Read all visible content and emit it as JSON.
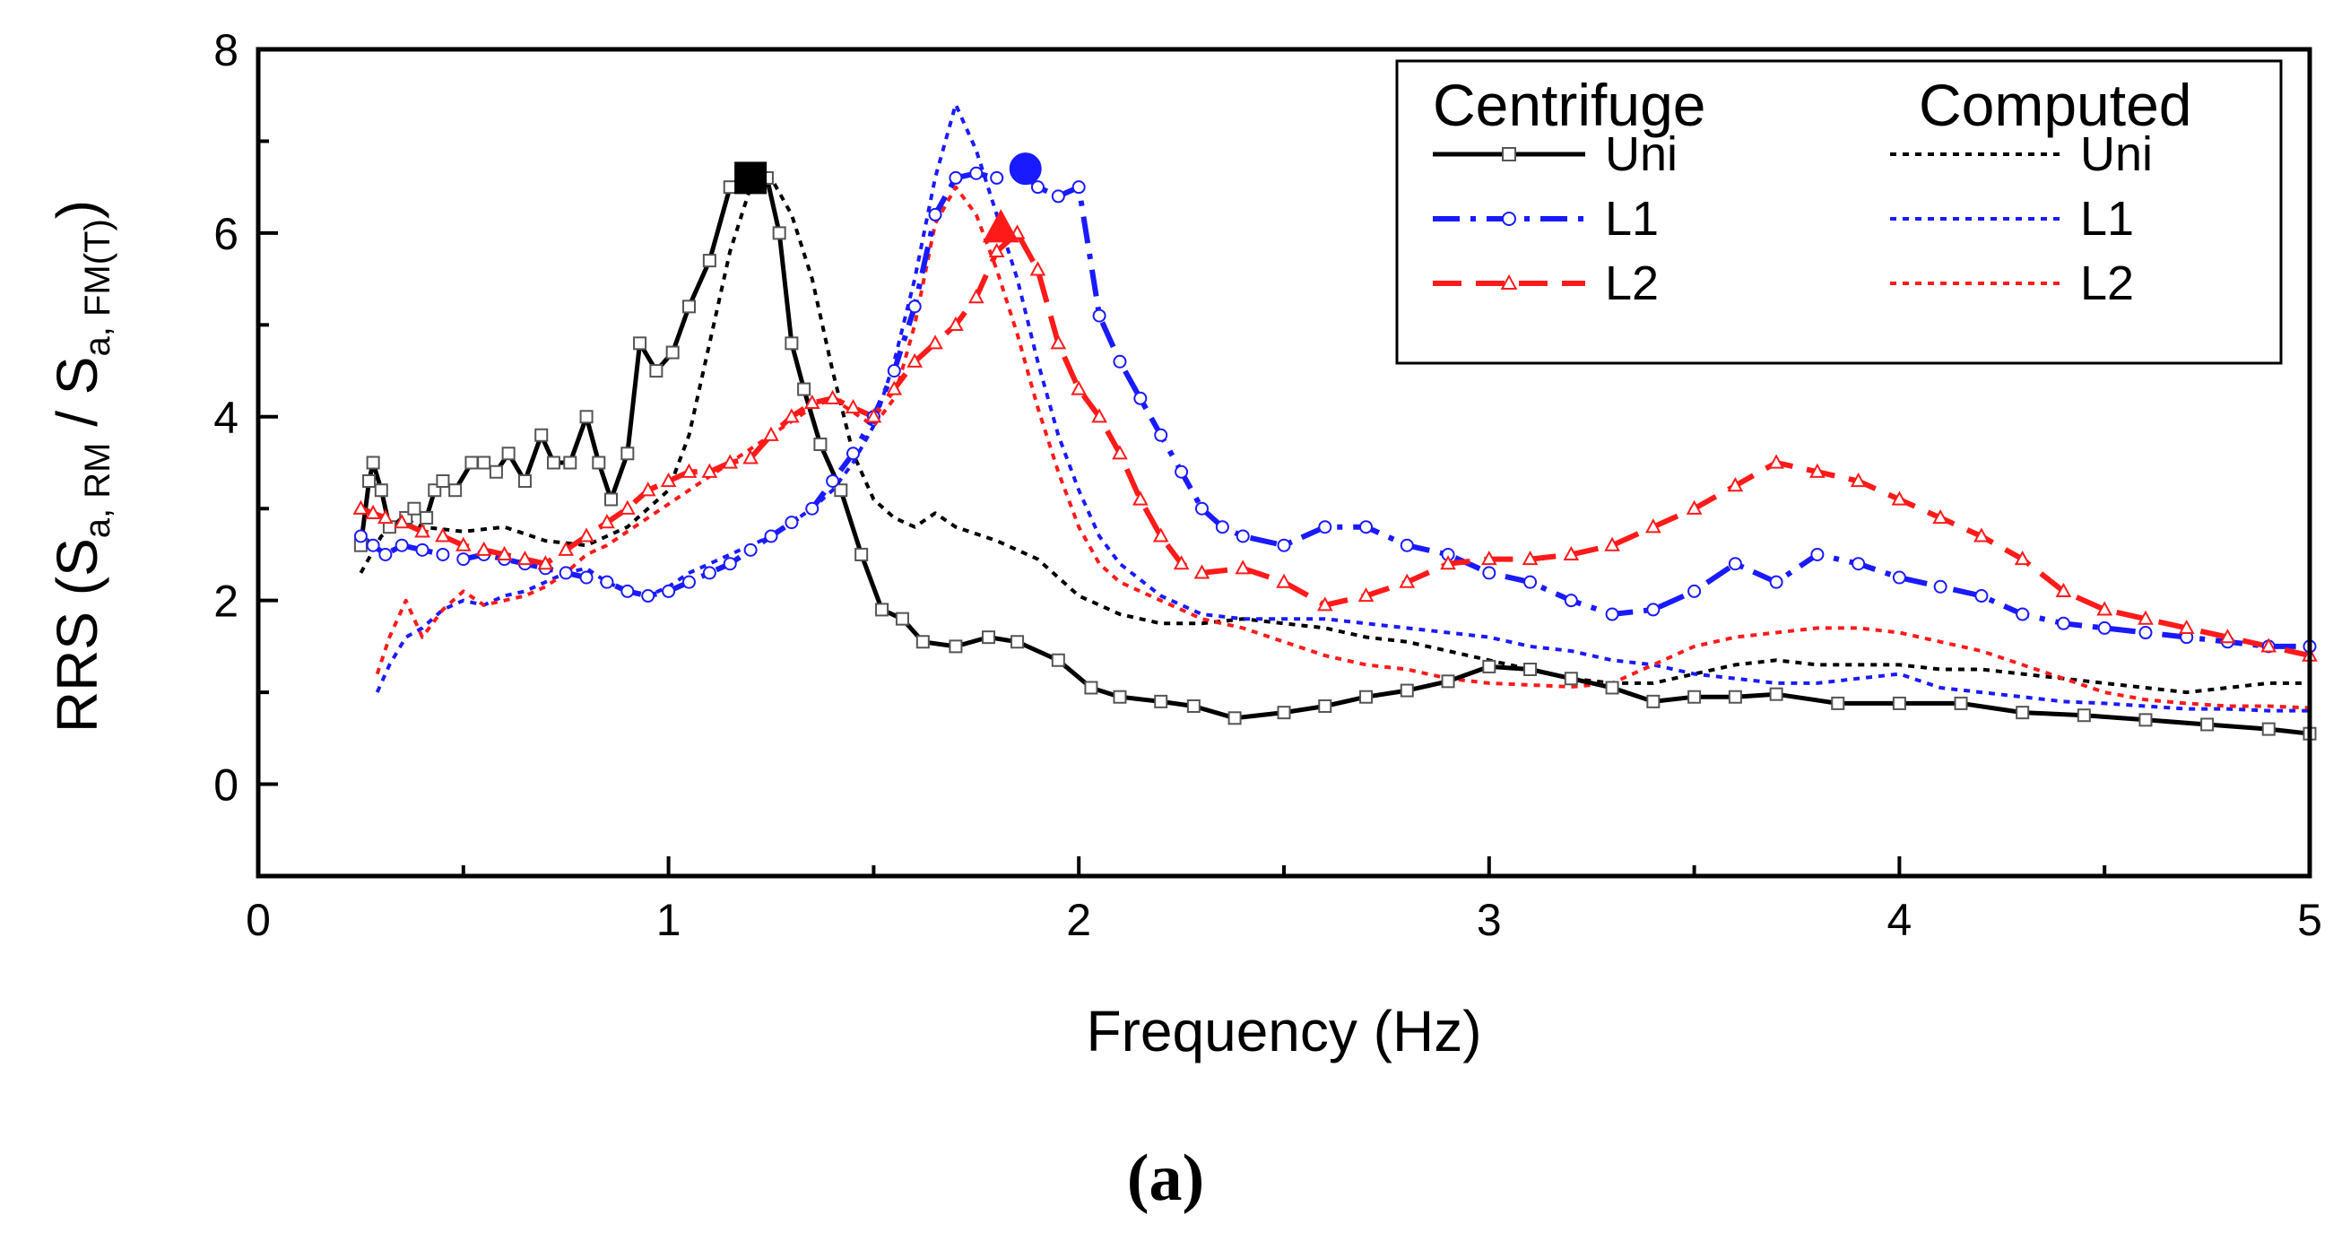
{
  "chart_data": {
    "type": "line",
    "xlabel": "Frequency (Hz)",
    "ylabel": {
      "main": "RRS (S",
      "sub1": "a, RM",
      "mid": " / S",
      "sub2": "a, FM(T)",
      "end": ")"
    },
    "xlim": [
      0,
      5
    ],
    "ylim": [
      -1,
      8
    ],
    "x_ticks": [
      0,
      1,
      2,
      3,
      4,
      5
    ],
    "y_ticks": [
      0,
      2,
      4,
      6,
      8
    ],
    "caption": "(a)",
    "legend": {
      "position": "top-right",
      "heading_left": "Centrifuge",
      "heading_right": "Computed"
    },
    "colors": {
      "uni": "#000000",
      "l1": "#1a1aff",
      "l2": "#ff1a1a"
    },
    "series": [
      {
        "name": "Uni",
        "group": "Centrifuge",
        "color": "#000000",
        "style": "solid",
        "marker": "square",
        "x": [
          0.25,
          0.27,
          0.28,
          0.3,
          0.32,
          0.36,
          0.38,
          0.41,
          0.43,
          0.45,
          0.48,
          0.52,
          0.55,
          0.58,
          0.61,
          0.65,
          0.69,
          0.72,
          0.76,
          0.8,
          0.83,
          0.86,
          0.9,
          0.93,
          0.97,
          1.01,
          1.05,
          1.1,
          1.15,
          1.2,
          1.24,
          1.27,
          1.3,
          1.33,
          1.37,
          1.42,
          1.47,
          1.52,
          1.57,
          1.62,
          1.7,
          1.78,
          1.85,
          1.95,
          2.03,
          2.1,
          2.2,
          2.28,
          2.38,
          2.5,
          2.6,
          2.7,
          2.8,
          2.9,
          3.0,
          3.1,
          3.2,
          3.3,
          3.4,
          3.5,
          3.6,
          3.7,
          3.85,
          4.0,
          4.15,
          4.3,
          4.45,
          4.6,
          4.75,
          4.9,
          5.0
        ],
        "y": [
          2.6,
          3.3,
          3.5,
          3.2,
          2.8,
          2.9,
          3.0,
          2.9,
          3.2,
          3.3,
          3.2,
          3.5,
          3.5,
          3.4,
          3.6,
          3.3,
          3.8,
          3.5,
          3.5,
          4.0,
          3.5,
          3.1,
          3.6,
          4.8,
          4.5,
          4.7,
          5.2,
          5.7,
          6.5,
          6.6,
          6.6,
          6.0,
          4.8,
          4.3,
          3.7,
          3.2,
          2.5,
          1.9,
          1.8,
          1.55,
          1.5,
          1.6,
          1.55,
          1.35,
          1.05,
          0.95,
          0.9,
          0.85,
          0.72,
          0.78,
          0.85,
          0.95,
          1.02,
          1.12,
          1.28,
          1.25,
          1.15,
          1.05,
          0.9,
          0.95,
          0.95,
          0.98,
          0.88,
          0.88,
          0.88,
          0.78,
          0.75,
          0.7,
          0.65,
          0.6,
          0.55
        ]
      },
      {
        "name": "L1",
        "group": "Centrifuge",
        "color": "#1a1aff",
        "style": "dashdot",
        "marker": "circle",
        "x": [
          0.25,
          0.28,
          0.31,
          0.35,
          0.4,
          0.45,
          0.5,
          0.55,
          0.6,
          0.65,
          0.7,
          0.75,
          0.8,
          0.85,
          0.9,
          0.95,
          1.0,
          1.05,
          1.1,
          1.15,
          1.2,
          1.25,
          1.3,
          1.35,
          1.4,
          1.45,
          1.5,
          1.55,
          1.6,
          1.65,
          1.7,
          1.75,
          1.8,
          1.85,
          1.9,
          1.95,
          2.0,
          2.05,
          2.1,
          2.15,
          2.2,
          2.25,
          2.3,
          2.35,
          2.4,
          2.5,
          2.6,
          2.7,
          2.8,
          2.9,
          3.0,
          3.1,
          3.2,
          3.3,
          3.4,
          3.5,
          3.6,
          3.7,
          3.8,
          3.9,
          4.0,
          4.1,
          4.2,
          4.3,
          4.4,
          4.5,
          4.6,
          4.7,
          4.8,
          4.9,
          5.0
        ],
        "y": [
          2.7,
          2.6,
          2.5,
          2.6,
          2.55,
          2.5,
          2.45,
          2.5,
          2.45,
          2.4,
          2.35,
          2.3,
          2.25,
          2.2,
          2.1,
          2.05,
          2.1,
          2.2,
          2.3,
          2.4,
          2.55,
          2.7,
          2.85,
          3.0,
          3.3,
          3.6,
          4.0,
          4.5,
          5.2,
          6.2,
          6.6,
          6.65,
          6.6,
          6.7,
          6.5,
          6.4,
          6.5,
          5.1,
          4.6,
          4.2,
          3.8,
          3.4,
          3.0,
          2.8,
          2.7,
          2.6,
          2.8,
          2.8,
          2.6,
          2.5,
          2.3,
          2.2,
          2.0,
          1.85,
          1.9,
          2.1,
          2.4,
          2.2,
          2.5,
          2.4,
          2.25,
          2.15,
          2.05,
          1.85,
          1.75,
          1.7,
          1.65,
          1.6,
          1.55,
          1.5,
          1.5
        ]
      },
      {
        "name": "L2",
        "group": "Centrifuge",
        "color": "#ff1a1a",
        "style": "dashed",
        "marker": "triangle",
        "x": [
          0.25,
          0.28,
          0.31,
          0.35,
          0.4,
          0.45,
          0.5,
          0.55,
          0.6,
          0.65,
          0.7,
          0.75,
          0.8,
          0.85,
          0.9,
          0.95,
          1.0,
          1.05,
          1.1,
          1.15,
          1.2,
          1.25,
          1.3,
          1.35,
          1.4,
          1.45,
          1.5,
          1.55,
          1.6,
          1.65,
          1.7,
          1.75,
          1.8,
          1.85,
          1.9,
          1.95,
          2.0,
          2.05,
          2.1,
          2.15,
          2.2,
          2.25,
          2.3,
          2.4,
          2.5,
          2.6,
          2.7,
          2.8,
          2.9,
          3.0,
          3.1,
          3.2,
          3.3,
          3.4,
          3.5,
          3.6,
          3.7,
          3.8,
          3.9,
          4.0,
          4.1,
          4.2,
          4.3,
          4.4,
          4.5,
          4.6,
          4.7,
          4.8,
          4.9,
          5.0
        ],
        "y": [
          3.0,
          2.95,
          2.9,
          2.85,
          2.75,
          2.7,
          2.6,
          2.55,
          2.5,
          2.45,
          2.4,
          2.55,
          2.7,
          2.85,
          3.0,
          3.2,
          3.3,
          3.4,
          3.4,
          3.5,
          3.55,
          3.8,
          4.0,
          4.15,
          4.2,
          4.1,
          4.0,
          4.3,
          4.6,
          4.8,
          5.0,
          5.3,
          5.8,
          6.0,
          5.6,
          4.8,
          4.3,
          4.0,
          3.6,
          3.1,
          2.7,
          2.4,
          2.3,
          2.35,
          2.2,
          1.95,
          2.05,
          2.2,
          2.4,
          2.45,
          2.45,
          2.5,
          2.6,
          2.8,
          3.0,
          3.25,
          3.5,
          3.4,
          3.3,
          3.1,
          2.9,
          2.7,
          2.45,
          2.1,
          1.9,
          1.8,
          1.7,
          1.6,
          1.5,
          1.4
        ]
      },
      {
        "name": "Uni",
        "group": "Computed",
        "color": "#000000",
        "style": "dotted",
        "marker": "none",
        "x": [
          0.25,
          0.3,
          0.35,
          0.4,
          0.5,
          0.6,
          0.7,
          0.8,
          0.9,
          1.0,
          1.05,
          1.1,
          1.15,
          1.2,
          1.25,
          1.3,
          1.35,
          1.4,
          1.45,
          1.5,
          1.55,
          1.6,
          1.65,
          1.7,
          1.8,
          1.9,
          2.0,
          2.1,
          2.2,
          2.3,
          2.4,
          2.5,
          2.6,
          2.7,
          2.8,
          2.9,
          3.0,
          3.1,
          3.2,
          3.3,
          3.4,
          3.5,
          3.6,
          3.7,
          3.8,
          3.9,
          4.0,
          4.1,
          4.2,
          4.3,
          4.4,
          4.5,
          4.6,
          4.7,
          4.8,
          4.9,
          5.0
        ],
        "y": [
          2.3,
          2.7,
          2.9,
          2.8,
          2.75,
          2.8,
          2.65,
          2.6,
          2.8,
          3.2,
          3.8,
          4.8,
          5.8,
          6.5,
          6.6,
          6.2,
          5.5,
          4.5,
          3.6,
          3.1,
          2.9,
          2.8,
          2.95,
          2.8,
          2.65,
          2.45,
          2.05,
          1.85,
          1.75,
          1.75,
          1.8,
          1.75,
          1.7,
          1.6,
          1.55,
          1.45,
          1.35,
          1.25,
          1.15,
          1.1,
          1.1,
          1.2,
          1.3,
          1.35,
          1.3,
          1.3,
          1.3,
          1.25,
          1.25,
          1.2,
          1.15,
          1.1,
          1.05,
          1.0,
          1.05,
          1.1,
          1.1
        ]
      },
      {
        "name": "L1",
        "group": "Computed",
        "color": "#1a1aff",
        "style": "dotted",
        "marker": "none",
        "x": [
          0.29,
          0.32,
          0.36,
          0.4,
          0.45,
          0.5,
          0.55,
          0.6,
          0.65,
          0.7,
          0.75,
          0.8,
          0.85,
          0.9,
          0.95,
          1.0,
          1.05,
          1.1,
          1.15,
          1.2,
          1.25,
          1.3,
          1.35,
          1.4,
          1.45,
          1.5,
          1.55,
          1.6,
          1.65,
          1.7,
          1.75,
          1.8,
          1.85,
          1.9,
          1.95,
          2.0,
          2.05,
          2.1,
          2.2,
          2.3,
          2.4,
          2.5,
          2.6,
          2.7,
          2.8,
          2.9,
          3.0,
          3.1,
          3.2,
          3.3,
          3.4,
          3.5,
          3.6,
          3.7,
          3.8,
          3.9,
          4.0,
          4.1,
          4.2,
          4.3,
          4.4,
          4.5,
          4.6,
          4.7,
          4.8,
          4.9,
          5.0
        ],
        "y": [
          1.0,
          1.3,
          1.6,
          1.7,
          1.9,
          2.0,
          1.95,
          2.05,
          2.1,
          2.2,
          2.3,
          2.35,
          2.2,
          2.1,
          2.05,
          2.15,
          2.3,
          2.4,
          2.5,
          2.6,
          2.7,
          2.85,
          3.0,
          3.2,
          3.5,
          3.9,
          4.6,
          5.5,
          6.6,
          7.4,
          6.9,
          6.2,
          5.5,
          4.6,
          3.8,
          3.2,
          2.7,
          2.4,
          2.05,
          1.85,
          1.8,
          1.8,
          1.8,
          1.75,
          1.7,
          1.65,
          1.6,
          1.5,
          1.45,
          1.35,
          1.3,
          1.2,
          1.15,
          1.1,
          1.1,
          1.15,
          1.2,
          1.05,
          1.0,
          0.95,
          0.9,
          0.88,
          0.85,
          0.82,
          0.82,
          0.8,
          0.8
        ]
      },
      {
        "name": "L2",
        "group": "Computed",
        "color": "#ff1a1a",
        "style": "dotted",
        "marker": "none",
        "x": [
          0.29,
          0.32,
          0.36,
          0.4,
          0.45,
          0.5,
          0.55,
          0.6,
          0.65,
          0.7,
          0.75,
          0.8,
          0.85,
          0.9,
          0.95,
          1.0,
          1.05,
          1.1,
          1.15,
          1.2,
          1.25,
          1.3,
          1.35,
          1.4,
          1.45,
          1.5,
          1.55,
          1.6,
          1.65,
          1.7,
          1.75,
          1.8,
          1.85,
          1.9,
          1.95,
          2.0,
          2.05,
          2.1,
          2.2,
          2.3,
          2.4,
          2.5,
          2.6,
          2.7,
          2.8,
          2.9,
          3.0,
          3.1,
          3.2,
          3.3,
          3.4,
          3.5,
          3.6,
          3.7,
          3.8,
          3.9,
          4.0,
          4.1,
          4.2,
          4.3,
          4.4,
          4.5,
          4.6,
          4.7,
          4.8,
          4.9,
          5.0
        ],
        "y": [
          1.2,
          1.6,
          2.0,
          1.6,
          1.9,
          2.1,
          1.95,
          2.0,
          2.05,
          2.15,
          2.3,
          2.5,
          2.6,
          2.75,
          2.9,
          3.05,
          3.2,
          3.35,
          3.5,
          3.65,
          3.8,
          3.95,
          4.1,
          4.2,
          4.05,
          3.9,
          4.2,
          5.0,
          6.1,
          6.5,
          6.2,
          5.6,
          4.9,
          4.1,
          3.4,
          2.8,
          2.4,
          2.2,
          2.0,
          1.8,
          1.7,
          1.55,
          1.4,
          1.3,
          1.25,
          1.15,
          1.1,
          1.08,
          1.06,
          1.1,
          1.3,
          1.5,
          1.6,
          1.65,
          1.7,
          1.7,
          1.65,
          1.55,
          1.45,
          1.3,
          1.15,
          1.0,
          0.92,
          0.88,
          0.85,
          0.85,
          0.83
        ]
      }
    ],
    "highlight_points": [
      {
        "series": "Uni",
        "x": 1.2,
        "y": 6.6,
        "shape": "square",
        "color": "#000000"
      },
      {
        "series": "L1",
        "x": 1.87,
        "y": 6.7,
        "shape": "circle",
        "color": "#1a1aff"
      },
      {
        "series": "L2",
        "x": 1.81,
        "y": 6.05,
        "shape": "triangle",
        "color": "#ff1a1a"
      }
    ]
  }
}
